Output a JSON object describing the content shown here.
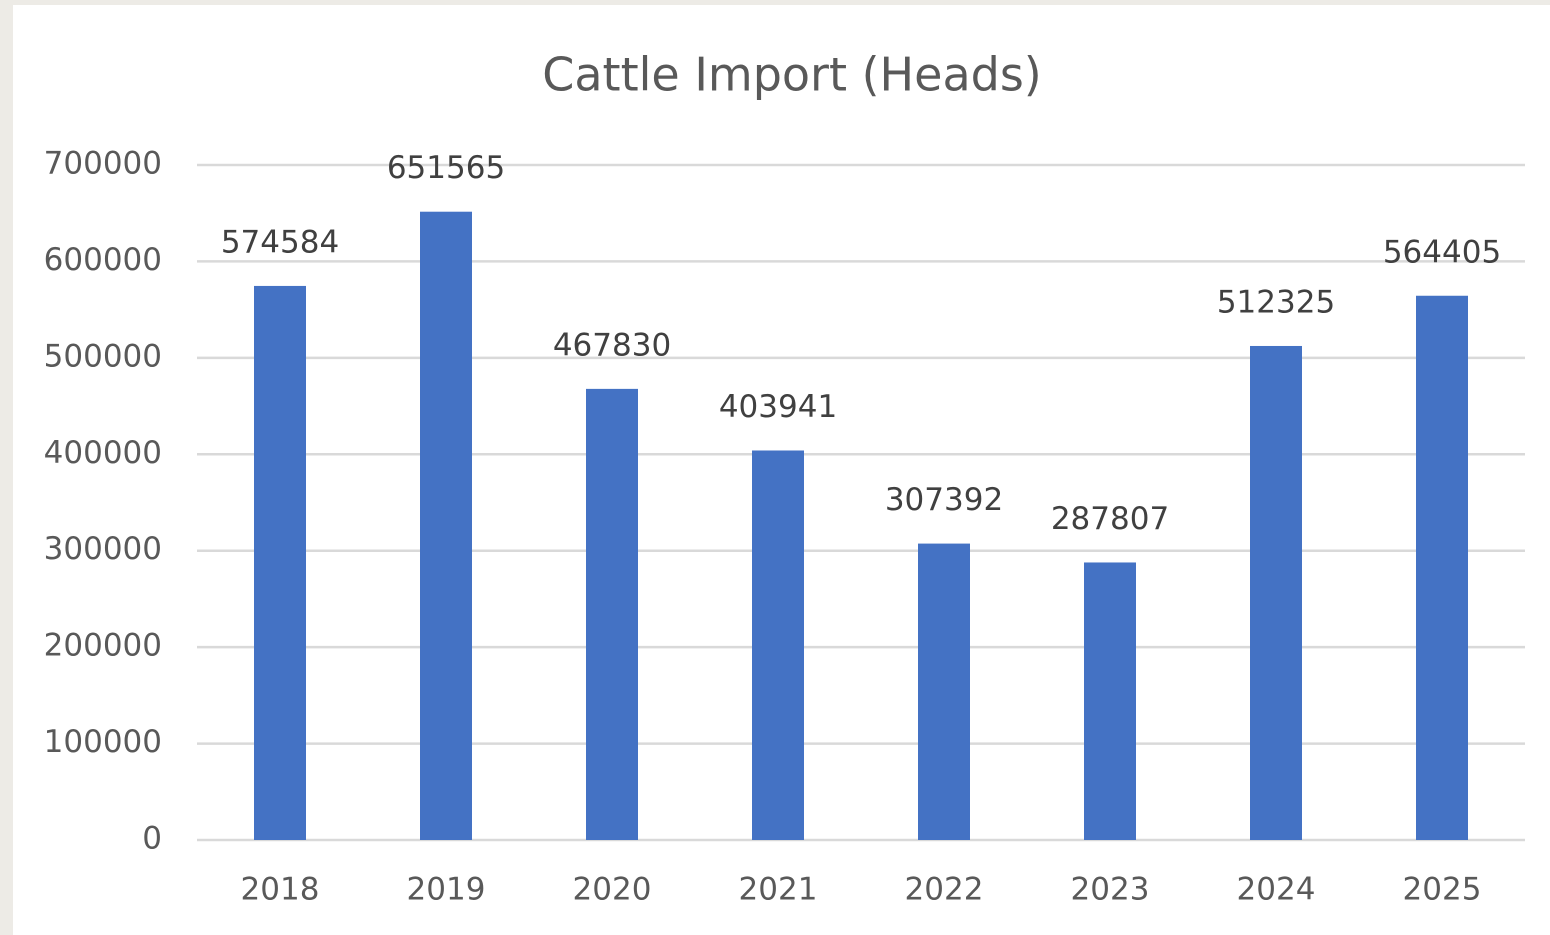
{
  "chart_data": {
    "type": "bar",
    "title": "Cattle Import (Heads)",
    "categories": [
      "2018",
      "2019",
      "2020",
      "2021",
      "2022",
      "2023",
      "2024",
      "2025"
    ],
    "values": [
      574584,
      651565,
      467830,
      403941,
      307392,
      287807,
      512325,
      564405
    ],
    "color": "#4472c4",
    "ylim": [
      0,
      700000
    ],
    "yticks": [
      0,
      100000,
      200000,
      300000,
      400000,
      500000,
      600000,
      700000
    ],
    "grid": true,
    "data_labels": true
  }
}
